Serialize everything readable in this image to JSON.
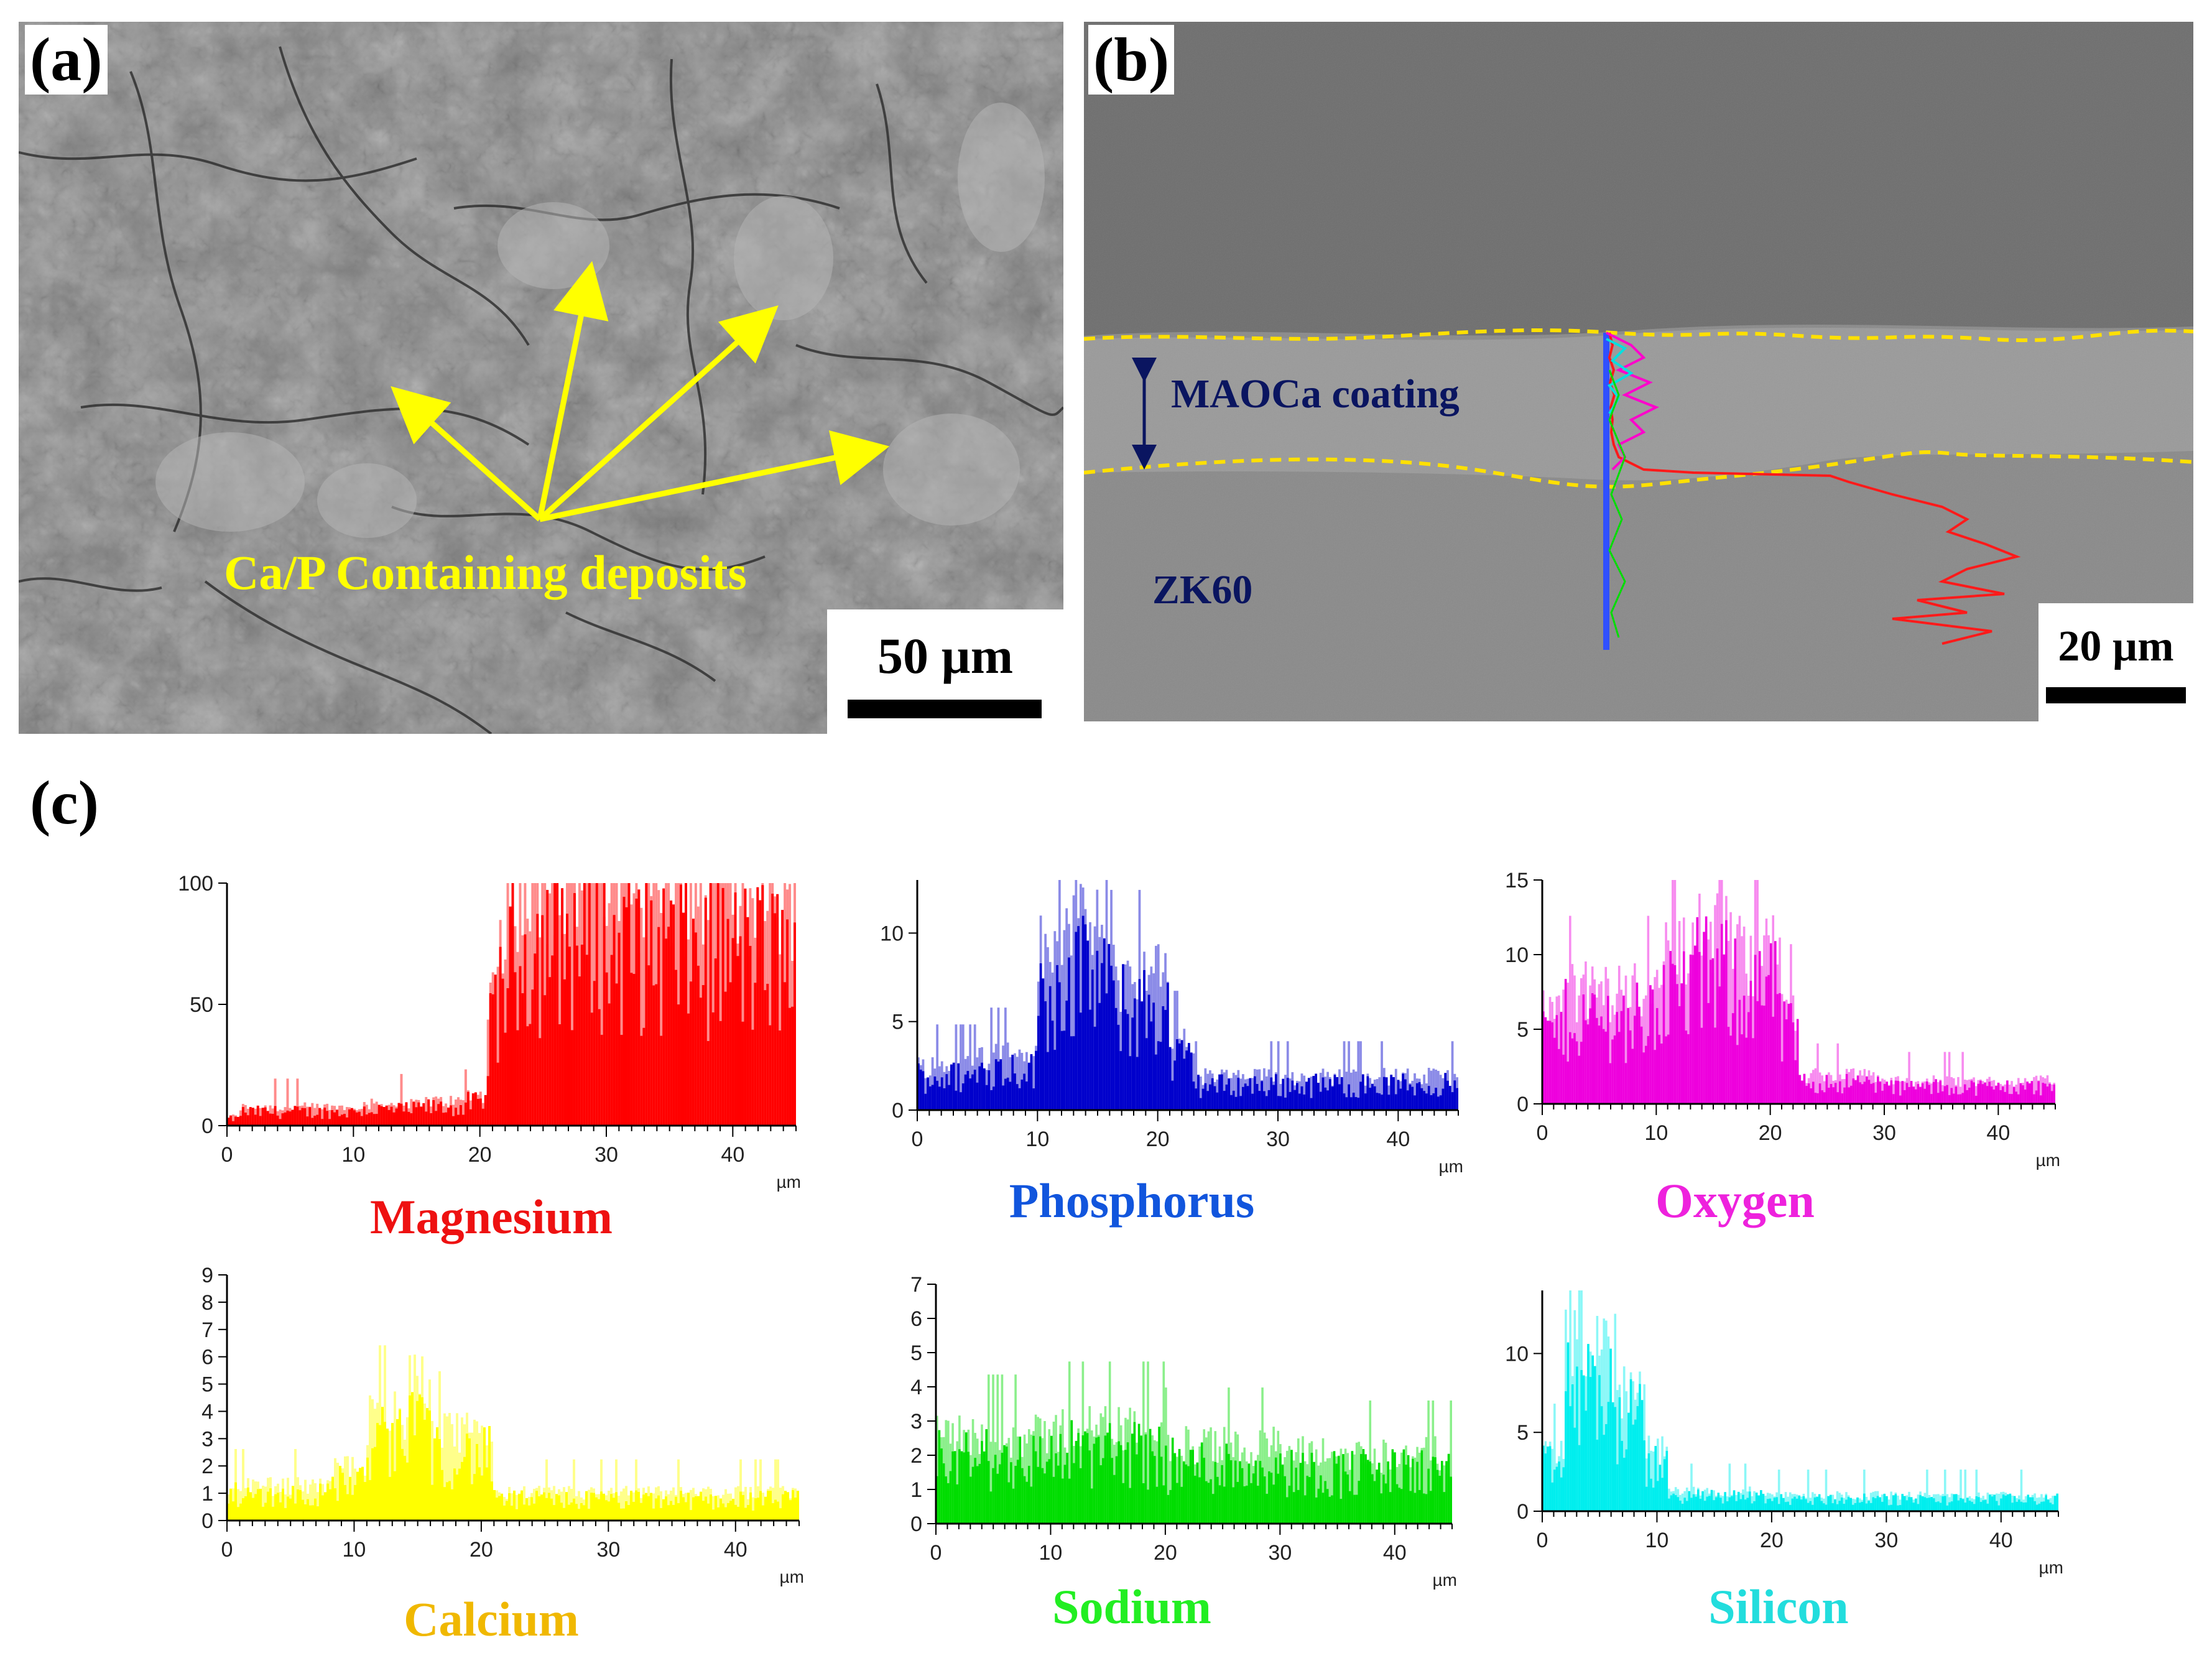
{
  "panels": {
    "a": {
      "label": "(a)",
      "annotation": "Ca/P Containing deposits",
      "scale_bar": "50 µm",
      "colors": {
        "annotation": "#ffff00"
      }
    },
    "b": {
      "label": "(b)",
      "coating_label": "MAOCa coating",
      "substrate_label": "ZK60",
      "scale_bar": "20 µm",
      "colors": {
        "boundary": "#ffe000",
        "text": "#0a1560"
      }
    },
    "c": {
      "label": "(c)"
    }
  },
  "chart_data": [
    {
      "type": "bar",
      "title": "Magnesium",
      "color": "#ff0000",
      "title_color": "#ee1111",
      "xlabel": "µm",
      "xlim": [
        0,
        45
      ],
      "ylim": [
        0,
        100
      ],
      "xticks": [
        0,
        10,
        20,
        30,
        40
      ],
      "yticks": [
        0,
        50,
        100
      ],
      "segments": [
        [
          0,
          1,
          3
        ],
        [
          1,
          5,
          6
        ],
        [
          5,
          10,
          6
        ],
        [
          10,
          15,
          7
        ],
        [
          15,
          19,
          8
        ],
        [
          19,
          20.5,
          10
        ],
        [
          20.5,
          21.5,
          45
        ],
        [
          21.5,
          22.5,
          68
        ],
        [
          22.5,
          25,
          78
        ],
        [
          25,
          30,
          82
        ],
        [
          30,
          35,
          78
        ],
        [
          35,
          40,
          76
        ],
        [
          40,
          45,
          74
        ]
      ]
    },
    {
      "type": "bar",
      "title": "Phosphorus",
      "color": "#0000cc",
      "title_color": "#1155dd",
      "xlabel": "µm",
      "xlim": [
        0,
        45
      ],
      "ylim": [
        0,
        13
      ],
      "xticks": [
        0,
        10,
        20,
        30,
        40
      ],
      "yticks": [
        0,
        5,
        10
      ],
      "segments": [
        [
          0,
          5,
          2
        ],
        [
          5,
          10,
          2.5
        ],
        [
          10,
          12,
          7
        ],
        [
          12,
          16,
          8
        ],
        [
          16,
          18,
          6
        ],
        [
          18,
          21,
          6
        ],
        [
          21,
          23,
          3
        ],
        [
          23,
          26,
          1.5
        ],
        [
          26,
          35,
          1.5
        ],
        [
          35,
          45,
          1.5
        ]
      ]
    },
    {
      "type": "bar",
      "title": "Oxygen",
      "color": "#ee00dd",
      "title_color": "#ee22dd",
      "xlabel": "µm",
      "xlim": [
        0,
        45
      ],
      "ylim": [
        0,
        15
      ],
      "xticks": [
        0,
        10,
        20,
        30,
        40
      ],
      "yticks": [
        0,
        5,
        10,
        15
      ],
      "segments": [
        [
          0,
          2,
          5
        ],
        [
          2,
          6,
          6
        ],
        [
          6,
          10,
          6
        ],
        [
          10,
          13,
          8
        ],
        [
          13,
          17,
          9
        ],
        [
          17,
          21,
          8
        ],
        [
          21,
          22.5,
          5
        ],
        [
          22.5,
          30,
          1.5
        ],
        [
          30,
          45,
          1.2
        ]
      ]
    },
    {
      "type": "bar",
      "title": "Calcium",
      "color": "#ffff00",
      "title_color": "#f0b800",
      "xlabel": "µm",
      "xlim": [
        0,
        45
      ],
      "ylim": [
        0,
        9
      ],
      "xticks": [
        0,
        10,
        20,
        30,
        40
      ],
      "yticks": [
        0,
        1,
        2,
        3,
        4,
        5,
        6,
        7,
        8,
        9
      ],
      "segments": [
        [
          0,
          8,
          1
        ],
        [
          8,
          11,
          1.5
        ],
        [
          11,
          14,
          3
        ],
        [
          14,
          16,
          4
        ],
        [
          16,
          18,
          2.5
        ],
        [
          18,
          21,
          2.5
        ],
        [
          21,
          30,
          0.8
        ],
        [
          30,
          45,
          0.8
        ]
      ]
    },
    {
      "type": "bar",
      "title": "Sodium",
      "color": "#00dd00",
      "title_color": "#22ee22",
      "xlabel": "µm",
      "xlim": [
        0,
        45
      ],
      "ylim": [
        0,
        7
      ],
      "xticks": [
        0,
        10,
        20,
        30,
        40
      ],
      "yticks": [
        0,
        1,
        2,
        3,
        4,
        5,
        6,
        7
      ],
      "segments": [
        [
          0,
          10,
          2
        ],
        [
          10,
          20,
          2.2
        ],
        [
          20,
          30,
          1.8
        ],
        [
          30,
          40,
          1.6
        ],
        [
          40,
          45,
          1.6
        ]
      ]
    },
    {
      "type": "bar",
      "title": "Silicon",
      "color": "#00eeee",
      "title_color": "#22dddd",
      "xlabel": "µm",
      "xlim": [
        0,
        45
      ],
      "ylim": [
        0,
        14
      ],
      "xticks": [
        0,
        10,
        20,
        30,
        40
      ],
      "yticks": [
        0,
        5,
        10
      ],
      "segments": [
        [
          0,
          2,
          3
        ],
        [
          2,
          6,
          8
        ],
        [
          6,
          9,
          6
        ],
        [
          9,
          11,
          3
        ],
        [
          11,
          20,
          1
        ],
        [
          20,
          45,
          0.8
        ]
      ]
    }
  ]
}
